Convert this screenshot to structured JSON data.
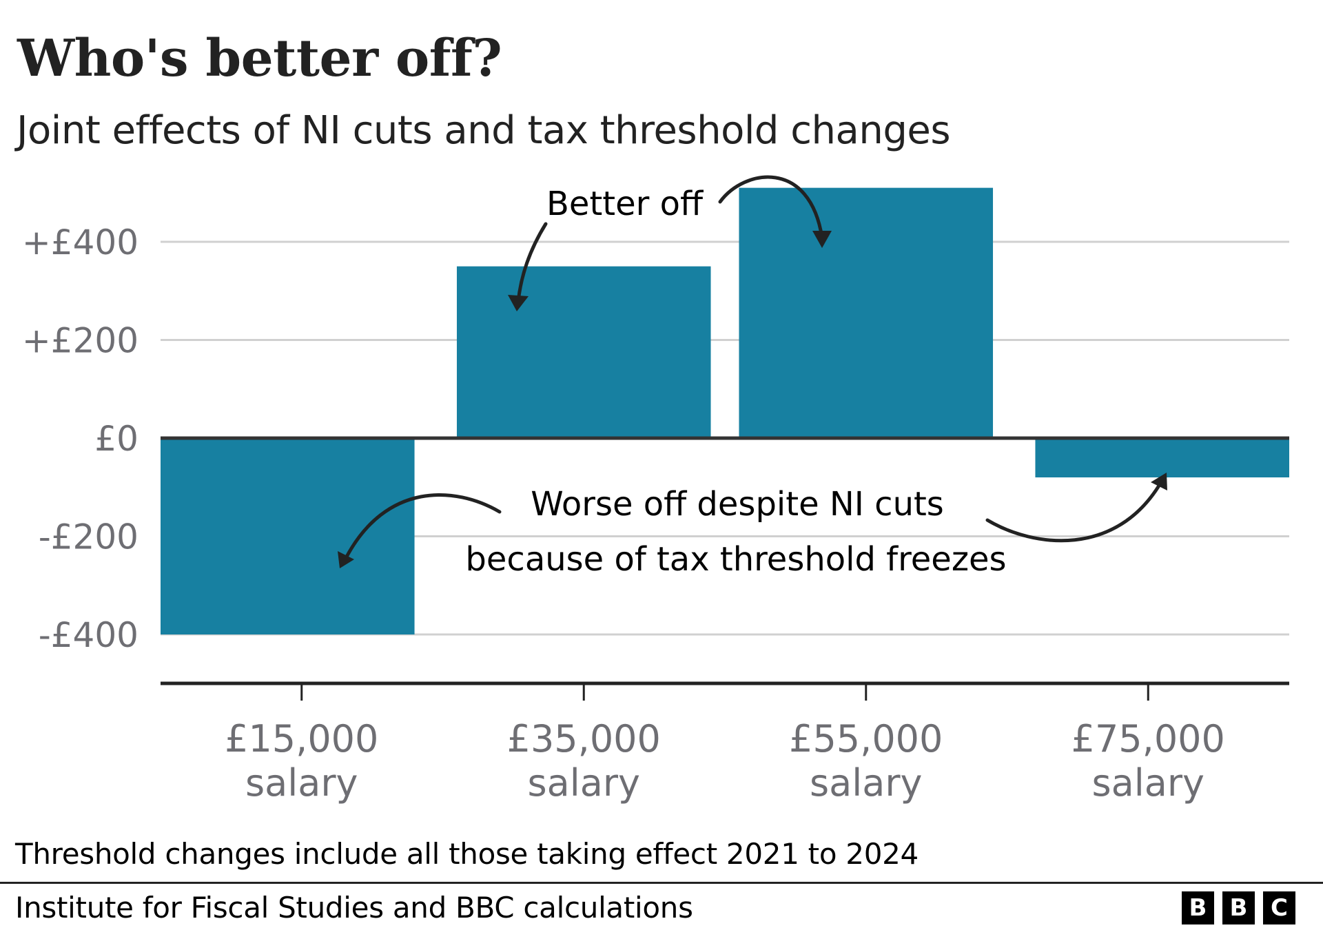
{
  "header": {
    "title": "Who's better off?",
    "subtitle": "Joint effects of NI cuts and tax threshold changes"
  },
  "colors": {
    "bar": "#1780a1",
    "zero_line": "#333333",
    "axis_line": "#222222",
    "gridline": "#d0d0d0",
    "tick_label": "#6e6e73",
    "annotation": "#222222"
  },
  "chart_data": {
    "type": "bar",
    "title": "Who's better off?",
    "subtitle": "Joint effects of NI cuts and tax threshold changes",
    "xlabel": "",
    "ylabel": "",
    "categories": [
      {
        "amount": "£15,000",
        "unit": "salary"
      },
      {
        "amount": "£35,000",
        "unit": "salary"
      },
      {
        "amount": "£55,000",
        "unit": "salary"
      },
      {
        "amount": "£75,000",
        "unit": "salary"
      }
    ],
    "values": [
      -400,
      350,
      510,
      -80
    ],
    "ylim": [
      -500,
      520
    ],
    "yticks": [
      {
        "value": 400,
        "label": "+£400"
      },
      {
        "value": 200,
        "label": "+£200"
      },
      {
        "value": 0,
        "label": "£0"
      },
      {
        "value": -200,
        "label": "-£200"
      },
      {
        "value": -400,
        "label": "-£400"
      }
    ],
    "grid": true,
    "legend": "none",
    "annotations": [
      {
        "id": "better-off",
        "lines": [
          "Better off"
        ],
        "points_to": [
          "£35,000 salary",
          "£55,000 salary"
        ]
      },
      {
        "id": "worse-off",
        "lines": [
          "Worse off despite NI cuts",
          "because of tax threshold freezes"
        ],
        "points_to": [
          "£15,000 salary",
          "£75,000 salary"
        ]
      }
    ]
  },
  "footer": {
    "note": "Threshold changes include all those taking effect 2021 to 2024",
    "source": "Institute for Fiscal Studies and BBC calculations",
    "logo_letters": [
      "B",
      "B",
      "C"
    ]
  }
}
